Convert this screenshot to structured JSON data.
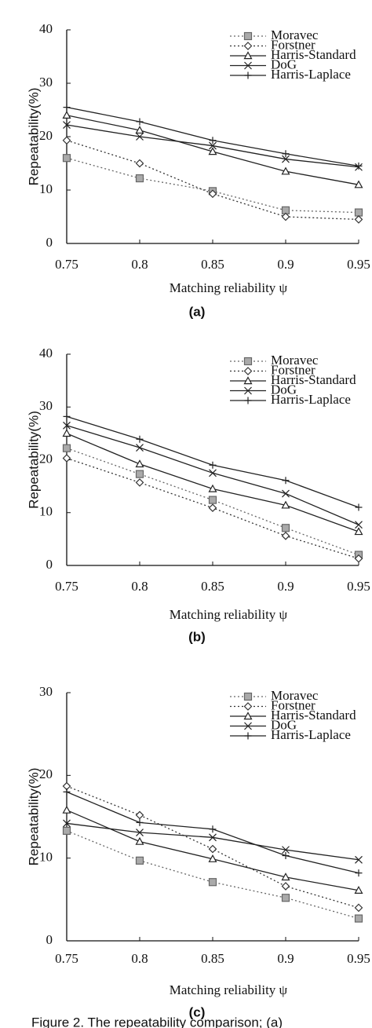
{
  "chart_data": [
    {
      "type": "line",
      "subtitle": "(a)",
      "xlabel": "Matching reliability ψ",
      "ylabel": "Repeatability(%)",
      "x": [
        0.75,
        0.8,
        0.85,
        0.9,
        0.95
      ],
      "xlim": [
        0.75,
        0.95
      ],
      "xticks": [
        0.75,
        0.8,
        0.85,
        0.9,
        0.95
      ],
      "ylim": [
        0,
        40
      ],
      "yticks": [
        0,
        10,
        20,
        30,
        40
      ],
      "legend": "top-right",
      "series": [
        {
          "name": "Moravec",
          "color": "#666666",
          "marker": "square",
          "dash": "dotted",
          "values": [
            16,
            12.2,
            9.8,
            6.2,
            5.8
          ]
        },
        {
          "name": "Forstner",
          "color": "#333333",
          "marker": "diamond",
          "dash": "dotted",
          "values": [
            19.3,
            15,
            9.3,
            5,
            4.5
          ]
        },
        {
          "name": "Harris-Standard",
          "color": "#222222",
          "marker": "triangle",
          "dash": "solid",
          "values": [
            24,
            21.2,
            17.2,
            13.5,
            11
          ]
        },
        {
          "name": "DoG",
          "color": "#222222",
          "marker": "x",
          "dash": "solid",
          "values": [
            22.2,
            20,
            18.3,
            15.8,
            14.3
          ]
        },
        {
          "name": "Harris-Laplace",
          "color": "#222222",
          "marker": "plus",
          "dash": "solid",
          "values": [
            25.5,
            22.8,
            19.3,
            16.8,
            14.5
          ]
        }
      ]
    },
    {
      "type": "line",
      "subtitle": "(b)",
      "xlabel": "Matching reliability ψ",
      "ylabel": "Repeatability(%)",
      "x": [
        0.75,
        0.8,
        0.85,
        0.9,
        0.95
      ],
      "xlim": [
        0.75,
        0.95
      ],
      "xticks": [
        0.75,
        0.8,
        0.85,
        0.9,
        0.95
      ],
      "ylim": [
        0,
        40
      ],
      "yticks": [
        0,
        10,
        20,
        30,
        40
      ],
      "legend": "top-right",
      "series": [
        {
          "name": "Moravec",
          "color": "#666666",
          "marker": "square",
          "dash": "dotted",
          "values": [
            22.2,
            17.3,
            12.4,
            7.1,
            2
          ]
        },
        {
          "name": "Forstner",
          "color": "#333333",
          "marker": "diamond",
          "dash": "dotted",
          "values": [
            20.3,
            15.7,
            10.9,
            5.6,
            1.3
          ]
        },
        {
          "name": "Harris-Standard",
          "color": "#222222",
          "marker": "triangle",
          "dash": "solid",
          "values": [
            25,
            19.2,
            14.5,
            11.4,
            6.4
          ]
        },
        {
          "name": "DoG",
          "color": "#222222",
          "marker": "x",
          "dash": "solid",
          "values": [
            26.5,
            22.3,
            17.5,
            13.6,
            7.7
          ]
        },
        {
          "name": "Harris-Laplace",
          "color": "#222222",
          "marker": "plus",
          "dash": "solid",
          "values": [
            28.2,
            23.9,
            19,
            16.1,
            11
          ]
        }
      ]
    },
    {
      "type": "line",
      "subtitle": "(c)",
      "xlabel": "Matching reliability ψ",
      "ylabel": "Repeatability(%)",
      "x": [
        0.75,
        0.8,
        0.85,
        0.9,
        0.95
      ],
      "xlim": [
        0.75,
        0.95
      ],
      "xticks": [
        0.75,
        0.8,
        0.85,
        0.9,
        0.95
      ],
      "ylim": [
        0,
        30
      ],
      "yticks": [
        0,
        10,
        20,
        30
      ],
      "legend": "top-right",
      "series": [
        {
          "name": "Moravec",
          "color": "#666666",
          "marker": "square",
          "dash": "dotted",
          "values": [
            13.3,
            9.7,
            7.1,
            5.2,
            2.7
          ]
        },
        {
          "name": "Forstner",
          "color": "#333333",
          "marker": "diamond",
          "dash": "dotted",
          "values": [
            18.7,
            15.2,
            11.1,
            6.6,
            4
          ]
        },
        {
          "name": "Harris-Standard",
          "color": "#222222",
          "marker": "triangle",
          "dash": "solid",
          "values": [
            15.8,
            12,
            9.9,
            7.7,
            6.1
          ]
        },
        {
          "name": "DoG",
          "color": "#222222",
          "marker": "x",
          "dash": "solid",
          "values": [
            14.2,
            13.1,
            12.5,
            11,
            9.8
          ]
        },
        {
          "name": "Harris-Laplace",
          "color": "#222222",
          "marker": "plus",
          "dash": "solid",
          "values": [
            18,
            14.3,
            13.5,
            10.3,
            8.2
          ]
        }
      ]
    }
  ],
  "caption": "Figure 2. The repeatability comparison; (a)"
}
